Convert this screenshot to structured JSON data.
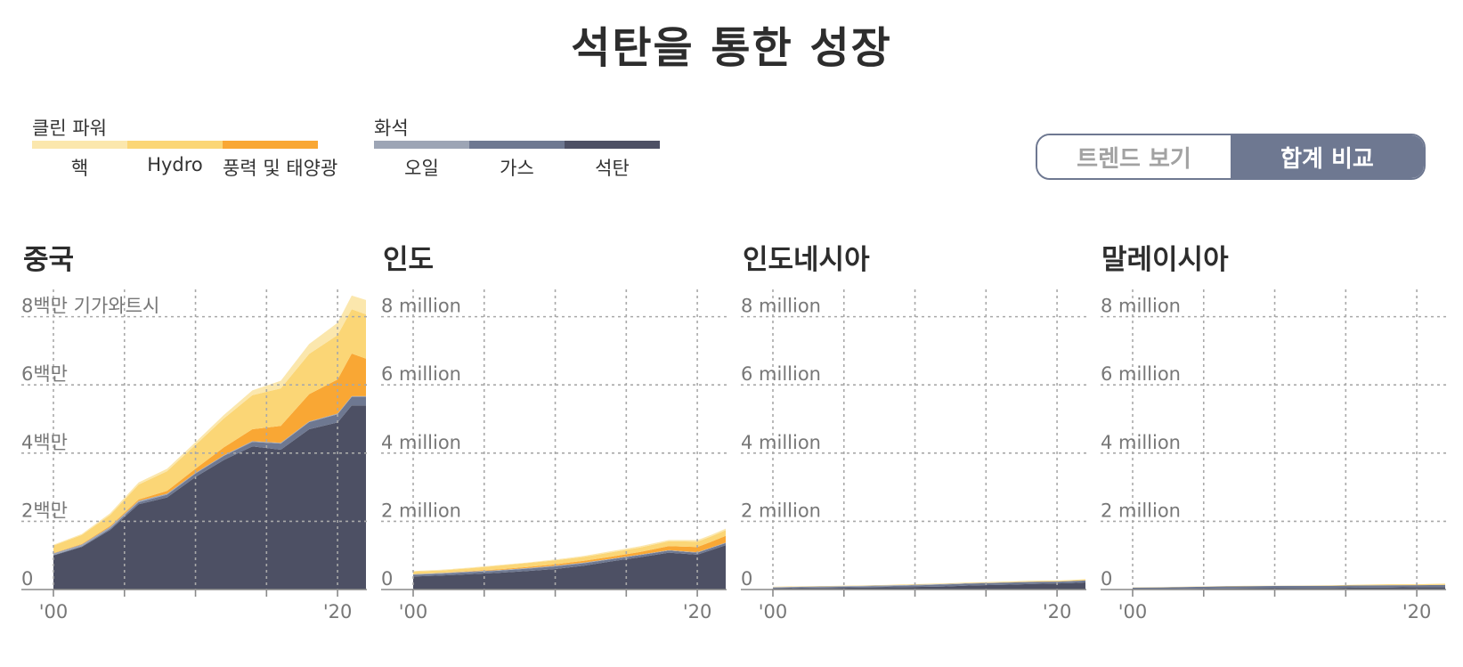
{
  "title": "석탄을 통한 성장",
  "legend": {
    "clean": {
      "title": "클린 파워",
      "items": [
        {
          "label": "핵",
          "color": "#fbe7ad"
        },
        {
          "label": "Hydro",
          "color": "#fbd676"
        },
        {
          "label": "풍력 및 태양광",
          "color": "#f9a734"
        }
      ]
    },
    "fossil": {
      "title": "화석",
      "items": [
        {
          "label": "오일",
          "color": "#9da5b5"
        },
        {
          "label": "가스",
          "color": "#6e7891"
        },
        {
          "label": "석탄",
          "color": "#4d5064"
        }
      ]
    }
  },
  "toggle": {
    "trend_label": "트렌드 보기",
    "total_label": "합계 비교",
    "selected": "total"
  },
  "chart_data": [
    {
      "type": "area",
      "title": "중국",
      "x": [
        2000,
        2002,
        2004,
        2006,
        2008,
        2010,
        2012,
        2014,
        2016,
        2018,
        2020,
        2021,
        2022
      ],
      "ylim": [
        0,
        8800000
      ],
      "yticks": [
        0,
        2000000,
        4000000,
        6000000,
        8000000
      ],
      "ytick_labels": [
        "0",
        "2백만",
        "4백만",
        "6백만",
        "8백만 기가와트시"
      ],
      "xtick_labels": [
        "'00",
        "'20"
      ],
      "series": [
        {
          "name": "석탄",
          "color": "#4d5064",
          "values": [
            1000000,
            1250000,
            1750000,
            2500000,
            2700000,
            3300000,
            3800000,
            4200000,
            4100000,
            4700000,
            4900000,
            5400000,
            5400000
          ]
        },
        {
          "name": "가스",
          "color": "#6e7891",
          "values": [
            10000,
            20000,
            40000,
            60000,
            80000,
            100000,
            120000,
            130000,
            180000,
            210000,
            240000,
            250000,
            250000
          ]
        },
        {
          "name": "오일",
          "color": "#9da5b5",
          "values": [
            50000,
            50000,
            50000,
            40000,
            30000,
            20000,
            20000,
            20000,
            20000,
            20000,
            20000,
            20000,
            20000
          ]
        },
        {
          "name": "풍력 및 태양광",
          "color": "#f9a734",
          "values": [
            10000,
            20000,
            30000,
            40000,
            80000,
            120000,
            230000,
            350000,
            500000,
            800000,
            1000000,
            1250000,
            1100000
          ]
        },
        {
          "name": "Hydro",
          "color": "#fbd676",
          "values": [
            220000,
            260000,
            320000,
            440000,
            580000,
            700000,
            850000,
            1000000,
            1100000,
            1180000,
            1300000,
            1300000,
            1300000
          ]
        },
        {
          "name": "핵",
          "color": "#fbe7ad",
          "values": [
            20000,
            30000,
            50000,
            60000,
            70000,
            80000,
            100000,
            140000,
            220000,
            290000,
            360000,
            400000,
            420000
          ]
        }
      ]
    },
    {
      "type": "area",
      "title": "인도",
      "x": [
        2000,
        2002,
        2004,
        2006,
        2008,
        2010,
        2012,
        2014,
        2016,
        2018,
        2020,
        2021,
        2022
      ],
      "ylim": [
        0,
        8800000
      ],
      "yticks": [
        0,
        2000000,
        4000000,
        6000000,
        8000000
      ],
      "ytick_labels": [
        "0",
        "2 million",
        "4 million",
        "6 million",
        "8 million"
      ],
      "xtick_labels": [
        "'00",
        "'20"
      ],
      "series": [
        {
          "name": "석탄",
          "color": "#4d5064",
          "values": [
            380000,
            410000,
            450000,
            490000,
            540000,
            600000,
            700000,
            830000,
            950000,
            1080000,
            1020000,
            1160000,
            1300000
          ]
        },
        {
          "name": "가스",
          "color": "#6e7891",
          "values": [
            50000,
            55000,
            60000,
            60000,
            70000,
            80000,
            70000,
            60000,
            60000,
            60000,
            60000,
            60000,
            60000
          ]
        },
        {
          "name": "오일",
          "color": "#9da5b5",
          "values": [
            20000,
            20000,
            20000,
            20000,
            20000,
            20000,
            20000,
            15000,
            15000,
            15000,
            15000,
            15000,
            15000
          ]
        },
        {
          "name": "풍력 및 태양광",
          "color": "#f9a734",
          "values": [
            2000,
            5000,
            10000,
            20000,
            30000,
            40000,
            50000,
            60000,
            80000,
            120000,
            150000,
            170000,
            200000
          ]
        },
        {
          "name": "Hydro",
          "color": "#fbd676",
          "values": [
            75000,
            70000,
            85000,
            110000,
            115000,
            115000,
            115000,
            130000,
            130000,
            140000,
            160000,
            155000,
            165000
          ]
        },
        {
          "name": "핵",
          "color": "#fbe7ad",
          "values": [
            16000,
            19000,
            17000,
            18000,
            15000,
            26000,
            33000,
            36000,
            38000,
            38000,
            43000,
            47000,
            46000
          ]
        }
      ]
    },
    {
      "type": "area",
      "title": "인도네시아",
      "x": [
        2000,
        2002,
        2004,
        2006,
        2008,
        2010,
        2012,
        2014,
        2016,
        2018,
        2020,
        2021,
        2022
      ],
      "ylim": [
        0,
        8800000
      ],
      "yticks": [
        0,
        2000000,
        4000000,
        6000000,
        8000000
      ],
      "ytick_labels": [
        "0",
        "2 million",
        "4 million",
        "6 million",
        "8 million"
      ],
      "xtick_labels": [
        "'00",
        "'20"
      ],
      "series": [
        {
          "name": "석탄",
          "color": "#4d5064",
          "values": [
            35000,
            40000,
            45000,
            55000,
            65000,
            75000,
            90000,
            120000,
            135000,
            160000,
            180000,
            190000,
            210000
          ]
        },
        {
          "name": "가스",
          "color": "#6e7891",
          "values": [
            20000,
            25000,
            30000,
            30000,
            35000,
            45000,
            55000,
            55000,
            60000,
            60000,
            50000,
            55000,
            55000
          ]
        },
        {
          "name": "오일",
          "color": "#9da5b5",
          "values": [
            15000,
            18000,
            20000,
            22000,
            22000,
            20000,
            18000,
            15000,
            10000,
            8000,
            6000,
            6000,
            5000
          ]
        },
        {
          "name": "풍력 및 태양광",
          "color": "#f9a734",
          "values": [
            0,
            0,
            0,
            0,
            0,
            0,
            0,
            0,
            0,
            1000,
            1000,
            1000,
            2000
          ]
        },
        {
          "name": "Hydro",
          "color": "#fbd676",
          "values": [
            10000,
            10000,
            10000,
            10000,
            12000,
            17000,
            13000,
            15000,
            19000,
            21000,
            24000,
            26000,
            27000
          ]
        },
        {
          "name": "핵",
          "color": "#fbe7ad",
          "values": [
            0,
            0,
            0,
            0,
            0,
            0,
            0,
            0,
            0,
            0,
            0,
            0,
            0
          ]
        }
      ]
    },
    {
      "type": "area",
      "title": "말레이시아",
      "x": [
        2000,
        2002,
        2004,
        2006,
        2008,
        2010,
        2012,
        2014,
        2016,
        2018,
        2020,
        2021,
        2022
      ],
      "ylim": [
        0,
        8800000
      ],
      "yticks": [
        0,
        2000000,
        4000000,
        6000000,
        8000000
      ],
      "ytick_labels": [
        "0",
        "2 million",
        "4 million",
        "6 million",
        "8 million"
      ],
      "xtick_labels": [
        "'00",
        "'20"
      ],
      "series": [
        {
          "name": "석탄",
          "color": "#4d5064",
          "values": [
            7000,
            9000,
            20000,
            30000,
            36000,
            40000,
            42000,
            45000,
            55000,
            60000,
            70000,
            70000,
            72000
          ]
        },
        {
          "name": "가스",
          "color": "#6e7891",
          "values": [
            48000,
            52000,
            56000,
            60000,
            62000,
            64000,
            66000,
            66000,
            64000,
            66000,
            58000,
            60000,
            62000
          ]
        },
        {
          "name": "오일",
          "color": "#9da5b5",
          "values": [
            3000,
            3000,
            2500,
            2000,
            2000,
            2000,
            1500,
            1000,
            1000,
            1000,
            1000,
            1000,
            1000
          ]
        },
        {
          "name": "풍력 및 태양광",
          "color": "#f9a734",
          "values": [
            0,
            0,
            0,
            0,
            0,
            0,
            0,
            0,
            0,
            0,
            1000,
            1000,
            1500
          ]
        },
        {
          "name": "Hydro",
          "color": "#fbd676",
          "values": [
            7000,
            6000,
            6000,
            6000,
            8000,
            7000,
            9000,
            13000,
            20000,
            26000,
            24000,
            30000,
            32000
          ]
        },
        {
          "name": "핵",
          "color": "#fbe7ad",
          "values": [
            0,
            0,
            0,
            0,
            0,
            0,
            0,
            0,
            0,
            0,
            0,
            0,
            0
          ]
        }
      ]
    }
  ]
}
